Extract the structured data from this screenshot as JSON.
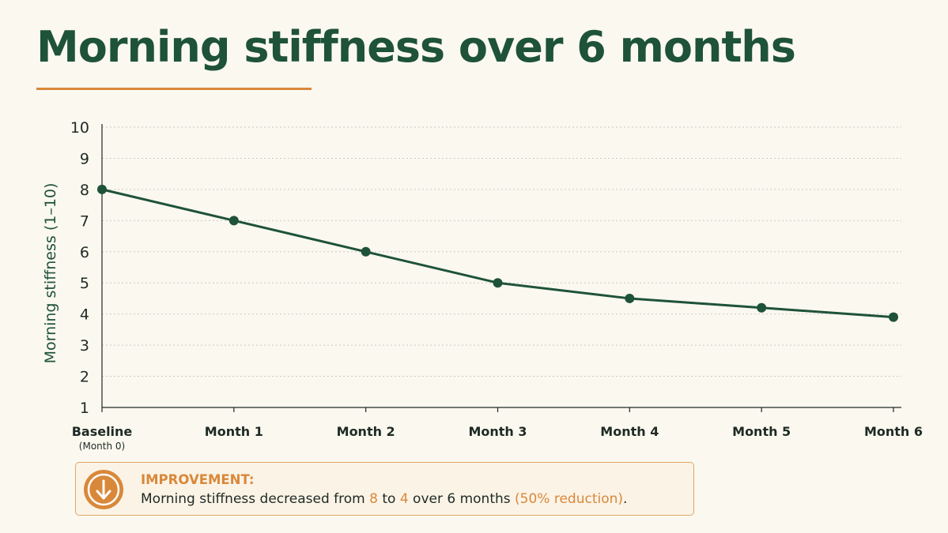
{
  "title": "Morning stiffness over 6 months",
  "colors": {
    "line": "#1e5239",
    "accent": "#d9883a",
    "grid": "#c9c9c9",
    "background": "#fbf8ef"
  },
  "chart_data": {
    "type": "line",
    "title": "Morning stiffness over 6 months",
    "ylabel": "Morning stiffness (1–10)",
    "xlabel": "",
    "ylim": [
      1,
      10
    ],
    "yticks": [
      1,
      2,
      3,
      4,
      5,
      6,
      7,
      8,
      9,
      10
    ],
    "grid": "horizontal dotted",
    "categories": [
      "Baseline",
      "Month 1",
      "Month 2",
      "Month 3",
      "Month 4",
      "Month 5",
      "Month 6"
    ],
    "category_sublabels": [
      "(Month 0)",
      "",
      "",
      "",
      "",
      "",
      ""
    ],
    "series": [
      {
        "values": [
          8,
          7,
          6,
          5,
          4.5,
          4.2,
          3.9
        ]
      }
    ]
  },
  "callout": {
    "icon": "arrow-down-icon",
    "heading": "IMPROVEMENT:",
    "text_pre": "Morning stiffness decreased from ",
    "from_value": "8",
    "text_mid": " to ",
    "to_value": "4",
    "text_post": " over 6 months ",
    "reduction": "(50% reduction)",
    "text_end": "."
  }
}
